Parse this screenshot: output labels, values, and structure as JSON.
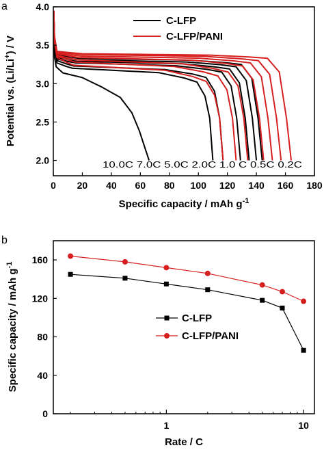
{
  "chart_data": [
    {
      "panel": "a",
      "type": "line",
      "xlabel": "Specific capacity / mAh g",
      "xlabel_sup": "-1",
      "ylabel_pre": "Potential vs. (Li/Li",
      "ylabel_sup": "+",
      "ylabel_post": ") / V",
      "xlim": [
        0,
        180
      ],
      "ylim": [
        1.8,
        4.0
      ],
      "xticks": [
        0,
        20,
        40,
        60,
        80,
        100,
        120,
        140,
        160,
        180
      ],
      "xtick_labels": [
        "0",
        "20",
        "40",
        "60",
        "80",
        "100",
        "120",
        "140",
        "160",
        "180"
      ],
      "yticks": [
        2.0,
        2.5,
        3.0,
        3.5,
        4.0
      ],
      "ytick_labels": [
        "2.0",
        "2.5",
        "3.0",
        "3.5",
        "4.0"
      ],
      "legend": {
        "position": "top-right",
        "entries": [
          {
            "label": "C-LFP",
            "color": "#000000"
          },
          {
            "label": "C-LFP/PANI",
            "color": "#d62020"
          }
        ]
      },
      "rate_annotation": "10.0C 7.0C 5.0C 2.0C 1.0 C 0.5C 0.2C",
      "series": [
        {
          "name": "C-LFP",
          "color": "#000000",
          "curves": [
            {
              "rate": "0.2C",
              "v0": 3.38,
              "vp": 3.33,
              "vend": 3.25,
              "q": 144
            },
            {
              "rate": "0.5C",
              "v0": 3.36,
              "vp": 3.31,
              "vend": 3.22,
              "q": 140
            },
            {
              "rate": "1.0C",
              "v0": 3.34,
              "vp": 3.29,
              "vend": 3.19,
              "q": 135
            },
            {
              "rate": "2.0C",
              "v0": 3.32,
              "vp": 3.27,
              "vend": 3.15,
              "q": 129
            },
            {
              "rate": "5.0C",
              "v0": 3.3,
              "vp": 3.23,
              "vend": 3.08,
              "q": 117
            },
            {
              "rate": "7.0C",
              "v0": 3.27,
              "vp": 3.2,
              "vend": 3.02,
              "q": 110
            },
            {
              "rate": "10.0C",
              "v0": 3.22,
              "vp": 3.14,
              "vend": 2.75,
              "q": 66
            }
          ]
        },
        {
          "name": "C-LFP/PANI",
          "color": "#d62020",
          "curves": [
            {
              "rate": "0.2C",
              "v0": 3.42,
              "vp": 3.39,
              "vend": 3.33,
              "q": 164
            },
            {
              "rate": "0.5C",
              "v0": 3.41,
              "vp": 3.38,
              "vend": 3.3,
              "q": 157
            },
            {
              "rate": "1.0C",
              "v0": 3.4,
              "vp": 3.36,
              "vend": 3.27,
              "q": 151
            },
            {
              "rate": "2.0C",
              "v0": 3.39,
              "vp": 3.34,
              "vend": 3.23,
              "q": 145
            },
            {
              "rate": "5.0C",
              "v0": 3.37,
              "vp": 3.31,
              "vend": 3.15,
              "q": 134
            },
            {
              "rate": "7.0C",
              "v0": 3.36,
              "vp": 3.28,
              "vend": 3.1,
              "q": 126
            },
            {
              "rate": "10.0C",
              "v0": 3.34,
              "vp": 3.24,
              "vend": 3.03,
              "q": 117
            }
          ]
        }
      ]
    },
    {
      "panel": "b",
      "type": "line",
      "xscale": "log",
      "xlabel": "Rate / C",
      "ylabel": "Specific capacity / mAh g",
      "ylabel_sup": "-1",
      "xlim": [
        0.15,
        12
      ],
      "ylim": [
        0,
        180
      ],
      "xticks": [
        1,
        10
      ],
      "xtick_labels": [
        "1",
        "10"
      ],
      "yticks": [
        0,
        40,
        80,
        120,
        160
      ],
      "ytick_labels": [
        "0",
        "40",
        "80",
        "120",
        "160"
      ],
      "legend": {
        "position": "center-right",
        "entries": [
          {
            "label": "C-LFP",
            "color": "#000000",
            "marker": "square"
          },
          {
            "label": "C-LFP/PANI",
            "color": "#d62020",
            "marker": "circle"
          }
        ]
      },
      "x": [
        0.2,
        0.5,
        1,
        2,
        5,
        7,
        10
      ],
      "series": [
        {
          "name": "C-LFP",
          "color": "#000000",
          "marker": "square",
          "values": [
            145,
            141,
            135,
            129,
            118,
            110,
            66
          ]
        },
        {
          "name": "C-LFP/PANI",
          "color": "#d62020",
          "marker": "circle",
          "values": [
            164,
            158,
            152,
            146,
            134,
            127,
            117
          ]
        }
      ]
    }
  ]
}
